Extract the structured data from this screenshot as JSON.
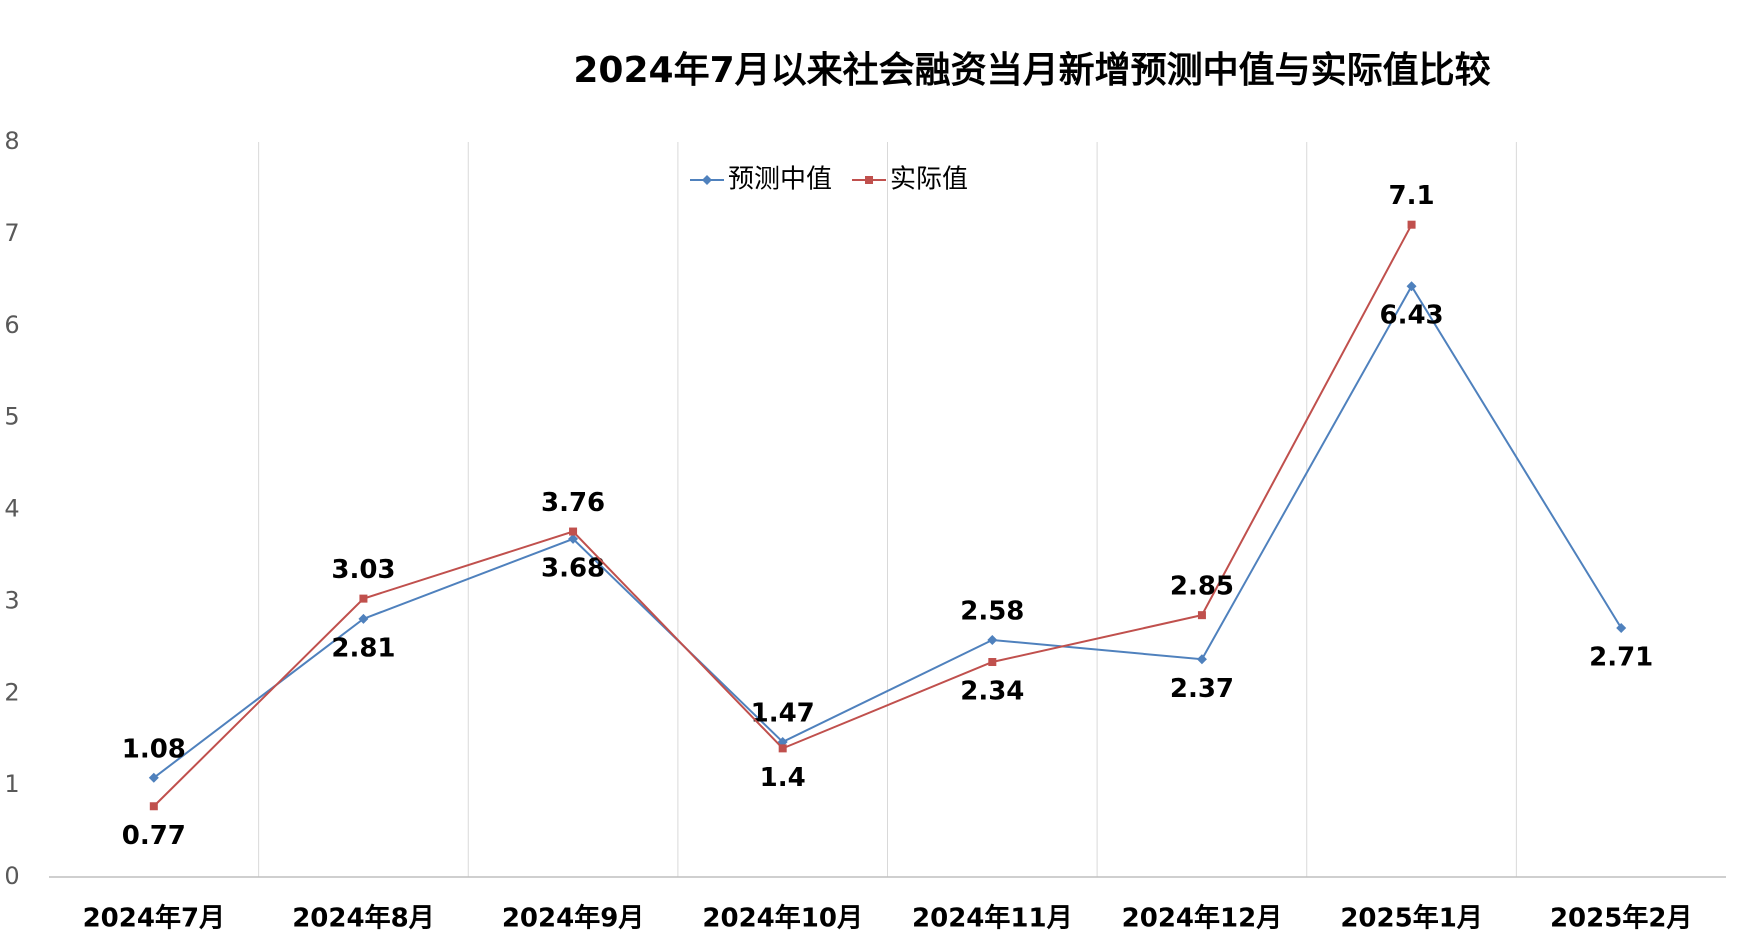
{
  "chart_data": {
    "type": "line",
    "title": "2024年7月以来社会融资当月新增预测中值与实际值比较",
    "categories": [
      "2024年7月",
      "2024年8月",
      "2024年9月",
      "2024年10月",
      "2024年11月",
      "2024年12月",
      "2025年1月",
      "2025年2月"
    ],
    "series": [
      {
        "name": "预测中值",
        "color": "#4f81bd",
        "values": [
          1.08,
          2.81,
          3.68,
          1.47,
          2.58,
          2.37,
          6.43,
          2.71
        ]
      },
      {
        "name": "实际值",
        "color": "#c0504d",
        "values": [
          0.77,
          3.03,
          3.76,
          1.4,
          2.34,
          2.85,
          7.1,
          null
        ]
      }
    ],
    "ylim": [
      0,
      8
    ],
    "yticks": [
      0,
      1,
      2,
      3,
      4,
      5,
      6,
      7,
      8
    ],
    "legend": "top"
  }
}
